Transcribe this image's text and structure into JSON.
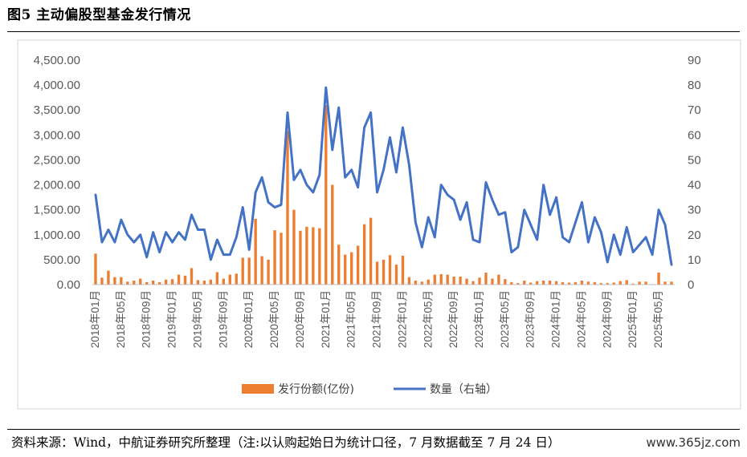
{
  "header": {
    "title": "图5  主动偏股型基金发行情况"
  },
  "footer": {
    "source": "资料来源：Wind，中航证券研究所整理（注:以认购起始日为统计口径，7 月数据截至 7 月 24 日）",
    "watermark": "www.365jz.com"
  },
  "chart_data": {
    "type": "bar+line",
    "months": [
      "2018年01月",
      "2018年02月",
      "2018年03月",
      "2018年04月",
      "2018年05月",
      "2018年06月",
      "2018年07月",
      "2018年08月",
      "2018年09月",
      "2018年10月",
      "2018年11月",
      "2018年12月",
      "2019年01月",
      "2019年02月",
      "2019年03月",
      "2019年04月",
      "2019年05月",
      "2019年06月",
      "2019年07月",
      "2019年08月",
      "2019年09月",
      "2019年10月",
      "2019年11月",
      "2019年12月",
      "2020年01月",
      "2020年02月",
      "2020年03月",
      "2020年04月",
      "2020年05月",
      "2020年06月",
      "2020年07月",
      "2020年08月",
      "2020年09月",
      "2020年10月",
      "2020年11月",
      "2020年12月",
      "2021年01月",
      "2021年02月",
      "2021年03月",
      "2021年04月",
      "2021年05月",
      "2021年06月",
      "2021年07月",
      "2021年08月",
      "2021年09月",
      "2021年10月",
      "2021年11月",
      "2021年12月",
      "2022年01月",
      "2022年02月",
      "2022年03月",
      "2022年04月",
      "2022年05月",
      "2022年06月",
      "2022年07月",
      "2022年08月",
      "2022年09月",
      "2022年10月",
      "2022年11月",
      "2022年12月",
      "2023年01月",
      "2023年02月",
      "2023年03月",
      "2023年04月",
      "2023年05月",
      "2023年06月",
      "2023年07月",
      "2023年08月",
      "2023年09月",
      "2023年10月",
      "2023年11月",
      "2023年12月",
      "2024年01月",
      "2024年02月",
      "2024年03月",
      "2024年04月",
      "2024年05月",
      "2024年06月",
      "2024年07月",
      "2024年08月",
      "2024年09月",
      "2024年10月",
      "2024年11月",
      "2024年12月",
      "2025年01月",
      "2025年02月",
      "2025年03月",
      "2025年04月",
      "2025年05月",
      "2025年06月",
      "2025年07月"
    ],
    "x_tick_labels": [
      "2018年01月",
      "2018年05月",
      "2018年09月",
      "2019年01月",
      "2019年05月",
      "2019年09月",
      "2020年01月",
      "2020年05月",
      "2020年09月",
      "2021年01月",
      "2021年05月",
      "2021年09月",
      "2022年01月",
      "2022年05月",
      "2022年09月",
      "2023年01月",
      "2023年05月",
      "2023年09月",
      "2024年01月",
      "2024年05月",
      "2024年09月",
      "2025年01月",
      "2025年05月"
    ],
    "series": [
      {
        "name": "发行份额(亿份)",
        "type": "bar",
        "axis": "left",
        "color": "#ED7D31",
        "values": [
          620,
          140,
          280,
          150,
          150,
          60,
          80,
          120,
          50,
          80,
          50,
          100,
          110,
          200,
          180,
          330,
          90,
          80,
          100,
          250,
          120,
          200,
          220,
          540,
          540,
          1320,
          570,
          500,
          1090,
          1040,
          3080,
          1500,
          1080,
          1160,
          1150,
          1130,
          3600,
          2000,
          800,
          600,
          650,
          780,
          1210,
          1340,
          460,
          500,
          590,
          400,
          580,
          150,
          80,
          60,
          100,
          200,
          210,
          200,
          160,
          160,
          120,
          70,
          140,
          240,
          120,
          200,
          110,
          50,
          30,
          80,
          40,
          70,
          80,
          80,
          70,
          50,
          40,
          50,
          80,
          60,
          50,
          30,
          30,
          40,
          70,
          90,
          20,
          60,
          60,
          10,
          240,
          60,
          60
        ]
      },
      {
        "name": "数量（右轴）",
        "type": "line",
        "axis": "right",
        "color": "#4472C4",
        "values": [
          36,
          17,
          22,
          17,
          26,
          20,
          17,
          20,
          11,
          21,
          13,
          21,
          17,
          21,
          18,
          28,
          22,
          22,
          10,
          18,
          12,
          12,
          19,
          31,
          14,
          37,
          43,
          33,
          31,
          32,
          69,
          42,
          46,
          40,
          37,
          44,
          79,
          54,
          71,
          43,
          46,
          39,
          63,
          69,
          37,
          46,
          59,
          45,
          63,
          48,
          25,
          15,
          27,
          19,
          40,
          36,
          34,
          26,
          33,
          18,
          17,
          41,
          34,
          28,
          29,
          13,
          15,
          30,
          24,
          18,
          40,
          28,
          35,
          19,
          17,
          25,
          33,
          17,
          27,
          21,
          9,
          20,
          12,
          23,
          13,
          16,
          19,
          12,
          30,
          24,
          8
        ]
      }
    ],
    "y_left": {
      "ylim": [
        0,
        4500
      ],
      "ticks": [
        "0.00",
        "500.00",
        "1,000.00",
        "1,500.00",
        "2,000.00",
        "2,500.00",
        "3,000.00",
        "3,500.00",
        "4,000.00",
        "4,500.00"
      ]
    },
    "y_right": {
      "ylim": [
        0,
        90
      ],
      "ticks": [
        "0",
        "10",
        "20",
        "30",
        "40",
        "50",
        "60",
        "70",
        "80",
        "90"
      ]
    },
    "grid": false,
    "legend": {
      "position": "bottom",
      "items": [
        {
          "label": "发行份额(亿份)",
          "color": "#ED7D31",
          "kind": "bar"
        },
        {
          "label": "数量（右轴）",
          "color": "#4472C4",
          "kind": "line"
        }
      ]
    }
  }
}
